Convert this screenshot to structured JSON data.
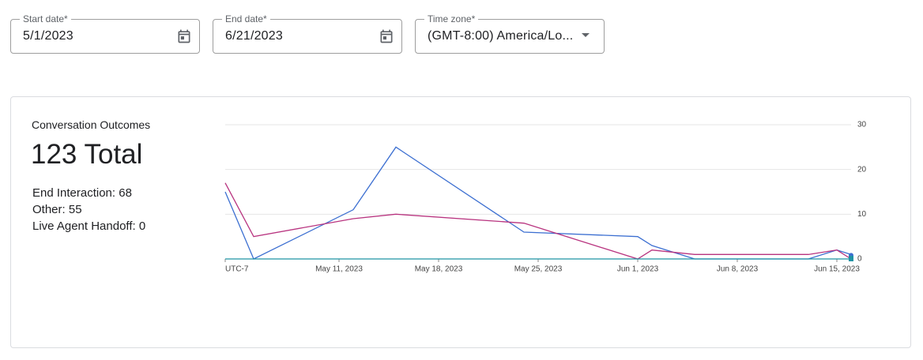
{
  "form": {
    "start_date": {
      "label": "Start date*",
      "value": "5/1/2023"
    },
    "end_date": {
      "label": "End date*",
      "value": "6/21/2023"
    },
    "time_zone": {
      "label": "Time zone*",
      "value": "(GMT-8:00) America/Lo..."
    }
  },
  "card": {
    "title": "Conversation Outcomes",
    "total": "123 Total",
    "stats": [
      "End Interaction: 68",
      "Other: 55",
      "Live Agent Handoff: 0"
    ]
  },
  "chart_data": {
    "type": "line",
    "x": [
      "2023-05-03",
      "2023-05-05",
      "2023-05-12",
      "2023-05-15",
      "2023-05-24",
      "2023-06-01",
      "2023-06-02",
      "2023-06-05",
      "2023-06-13",
      "2023-06-15",
      "2023-06-16"
    ],
    "series": [
      {
        "color": "#3c6fd1",
        "values": [
          15,
          0,
          11,
          25,
          6,
          5,
          3,
          0,
          0,
          2,
          1
        ]
      },
      {
        "color": "#b8337f",
        "values": [
          17,
          5,
          9,
          10,
          8,
          0,
          2,
          1,
          1,
          2,
          0
        ]
      },
      {
        "color": "#1f93a5",
        "values": [
          0,
          0,
          0,
          0,
          0,
          0,
          0,
          0,
          0,
          0,
          0
        ]
      }
    ],
    "xlim": [
      "2023-05-03",
      "2023-06-16"
    ],
    "xticks": [
      {
        "value": "2023-05-03",
        "label": "UTC-7"
      },
      {
        "value": "2023-05-11",
        "label": "May 11, 2023"
      },
      {
        "value": "2023-05-18",
        "label": "May 18, 2023"
      },
      {
        "value": "2023-05-25",
        "label": "May 25, 2023"
      },
      {
        "value": "2023-06-01",
        "label": "Jun 1, 2023"
      },
      {
        "value": "2023-06-08",
        "label": "Jun 8, 2023"
      },
      {
        "value": "2023-06-15",
        "label": "Jun 15, 2023"
      }
    ],
    "ylim": [
      0,
      30
    ],
    "yticks": [
      0,
      10,
      20,
      30
    ],
    "grid": true
  }
}
